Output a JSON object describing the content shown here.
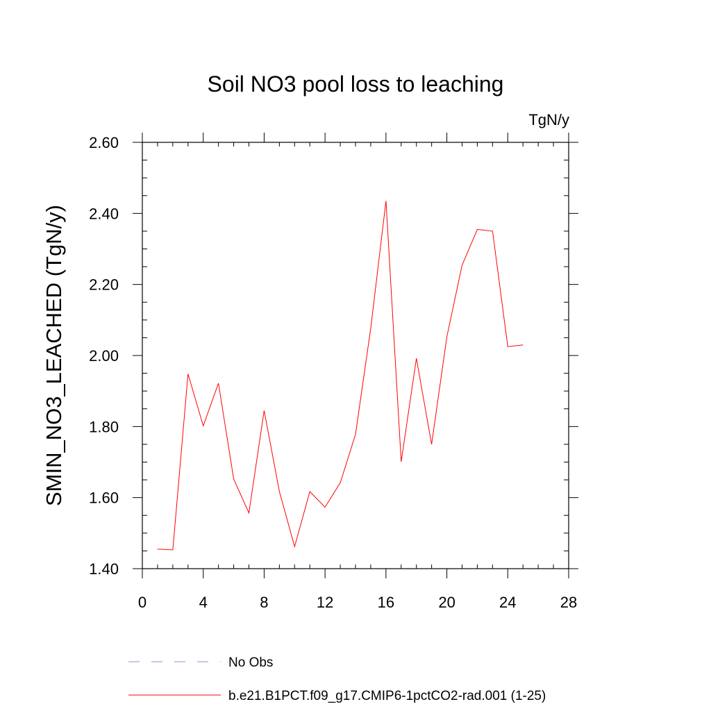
{
  "chart_data": {
    "type": "line",
    "title": "Soil NO3 pool loss to leaching",
    "units_label": "TgN/y",
    "ylabel": "SMIN_NO3_LEACHED  (TgN/y)",
    "xlabel": "",
    "xlim": [
      0,
      28
    ],
    "ylim": [
      1.4,
      2.6
    ],
    "xticks": [
      "0",
      "4",
      "8",
      "12",
      "16",
      "20",
      "24",
      "28"
    ],
    "yticks": [
      "1.40",
      "1.60",
      "1.80",
      "2.00",
      "2.20",
      "2.40",
      "2.60"
    ],
    "grid": false,
    "legend_position": "bottom",
    "series": [
      {
        "name": "b.e21.B1PCT.f09_g17.CMIP6-1pctCO2-rad.001 (1-25)",
        "color": "#ff0000",
        "style": "solid",
        "x": [
          1,
          2,
          3,
          4,
          5,
          6,
          7,
          8,
          9,
          10,
          11,
          12,
          13,
          14,
          15,
          16,
          17,
          18,
          19,
          20,
          21,
          22,
          23,
          24,
          25
        ],
        "values": [
          1.455,
          1.453,
          1.948,
          1.802,
          1.922,
          1.652,
          1.557,
          1.845,
          1.617,
          1.462,
          1.617,
          1.573,
          1.642,
          1.778,
          2.076,
          2.435,
          1.701,
          1.992,
          1.75,
          2.053,
          2.254,
          2.355,
          2.35,
          2.025,
          2.03
        ]
      }
    ],
    "legend": [
      {
        "label": "No Obs",
        "color": "#8f8fd8",
        "style": "dashed"
      },
      {
        "label": "b.e21.B1PCT.f09_g17.CMIP6-1pctCO2-rad.001 (1-25)",
        "color": "#ff0000",
        "style": "solid"
      }
    ]
  }
}
